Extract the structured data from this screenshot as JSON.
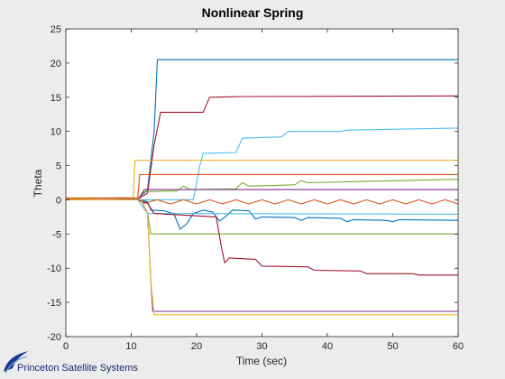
{
  "chart_data": {
    "type": "line",
    "title": "Nonlinear Spring",
    "xlabel": "Time (sec)",
    "ylabel": "Theta",
    "xlim": [
      0,
      60
    ],
    "ylim": [
      -20,
      25
    ],
    "xticks": [
      0,
      10,
      20,
      30,
      40,
      50,
      60
    ],
    "yticks": [
      -20,
      -15,
      -10,
      -5,
      0,
      5,
      10,
      15,
      20,
      25
    ],
    "grid": false,
    "series": [
      {
        "color": "#0072bd",
        "points": [
          [
            0,
            0
          ],
          [
            11,
            0.1
          ],
          [
            12.5,
            1.5
          ],
          [
            13.5,
            10
          ],
          [
            14,
            20.5
          ],
          [
            60,
            20.5
          ]
        ]
      },
      {
        "color": "#a2142f",
        "points": [
          [
            0,
            0
          ],
          [
            11,
            0.1
          ],
          [
            12.5,
            1
          ],
          [
            13.5,
            8
          ],
          [
            14.5,
            12.8
          ],
          [
            21,
            12.8
          ],
          [
            22,
            15
          ],
          [
            27,
            15.1
          ],
          [
            60,
            15.2
          ]
        ]
      },
      {
        "color": "#4dbeee",
        "points": [
          [
            0,
            0
          ],
          [
            19.5,
            0
          ],
          [
            20.5,
            5
          ],
          [
            21,
            6.8
          ],
          [
            26,
            6.9
          ],
          [
            27,
            9
          ],
          [
            33,
            9.2
          ],
          [
            34,
            10
          ],
          [
            42,
            10
          ],
          [
            43,
            10.2
          ],
          [
            60,
            10.5
          ]
        ]
      },
      {
        "color": "#edb120",
        "points": [
          [
            0,
            0.3
          ],
          [
            10.3,
            0.3
          ],
          [
            10.6,
            5.8
          ],
          [
            60,
            5.8
          ]
        ]
      },
      {
        "color": "#d95319",
        "points": [
          [
            0,
            0.2
          ],
          [
            11,
            0.3
          ],
          [
            11.3,
            3.7
          ],
          [
            60,
            3.7
          ]
        ]
      },
      {
        "color": "#77ac30",
        "points": [
          [
            0,
            0
          ],
          [
            11,
            0
          ],
          [
            12,
            1.2
          ],
          [
            17,
            1.3
          ],
          [
            18,
            2
          ],
          [
            19,
            1.5
          ],
          [
            26,
            1.6
          ],
          [
            27,
            2.5
          ],
          [
            28,
            2
          ],
          [
            35,
            2.2
          ],
          [
            36,
            2.8
          ],
          [
            37,
            2.5
          ],
          [
            60,
            3
          ]
        ]
      },
      {
        "color": "#7e2f8e",
        "points": [
          [
            0,
            0
          ],
          [
            11,
            0
          ],
          [
            12,
            1.5
          ],
          [
            60,
            1.5
          ]
        ]
      },
      {
        "color": "#0072bd",
        "points": [
          [
            0,
            0
          ],
          [
            11.5,
            0
          ],
          [
            12.5,
            -0.3
          ],
          [
            13,
            -1.5
          ],
          [
            15,
            -1.6
          ],
          [
            16.5,
            -2
          ],
          [
            17.5,
            -4.3
          ],
          [
            18.5,
            -3.5
          ],
          [
            19.5,
            -2
          ],
          [
            21,
            -1.5
          ],
          [
            22.5,
            -1.8
          ],
          [
            23.5,
            -3.1
          ],
          [
            24.5,
            -2.4
          ],
          [
            25.5,
            -1.5
          ],
          [
            28,
            -1.6
          ],
          [
            29,
            -2.8
          ],
          [
            30,
            -2.5
          ],
          [
            35,
            -2.6
          ],
          [
            36,
            -3
          ],
          [
            37,
            -2.6
          ],
          [
            42,
            -2.7
          ],
          [
            43,
            -3.2
          ],
          [
            44,
            -2.9
          ],
          [
            49,
            -3
          ],
          [
            50,
            -3.2
          ],
          [
            51,
            -2.9
          ],
          [
            60,
            -3
          ]
        ]
      },
      {
        "color": "#4dbeee",
        "points": [
          [
            0,
            0
          ],
          [
            11,
            0
          ],
          [
            12.5,
            -2
          ],
          [
            60,
            -2.1
          ]
        ]
      },
      {
        "color": "#d95319",
        "points": [
          [
            0,
            0
          ],
          [
            11,
            0
          ],
          [
            12,
            -0.5
          ],
          [
            14,
            0
          ],
          [
            16,
            -0.6
          ],
          [
            18,
            0
          ],
          [
            20,
            -0.6
          ],
          [
            22,
            0
          ],
          [
            24,
            -0.6
          ],
          [
            26,
            0
          ],
          [
            28,
            -0.6
          ],
          [
            30,
            0
          ],
          [
            32,
            -0.6
          ],
          [
            34,
            0
          ],
          [
            36,
            -0.6
          ],
          [
            38,
            0
          ],
          [
            40,
            -0.6
          ],
          [
            42,
            0
          ],
          [
            44,
            -0.6
          ],
          [
            46,
            0
          ],
          [
            48,
            -0.6
          ],
          [
            50,
            0
          ],
          [
            52,
            -0.6
          ],
          [
            54,
            0
          ],
          [
            56,
            -0.6
          ],
          [
            58,
            0
          ],
          [
            60,
            -0.6
          ]
        ]
      },
      {
        "color": "#77ac30",
        "points": [
          [
            0,
            0
          ],
          [
            11.5,
            0
          ],
          [
            12.5,
            -2
          ],
          [
            13,
            -5
          ],
          [
            60,
            -5
          ]
        ]
      },
      {
        "color": "#a2142f",
        "points": [
          [
            0,
            0
          ],
          [
            11,
            0
          ],
          [
            12.5,
            -0.5
          ],
          [
            13.5,
            -2
          ],
          [
            23,
            -2.5
          ],
          [
            23.8,
            -7
          ],
          [
            24.3,
            -9.2
          ],
          [
            25,
            -8.5
          ],
          [
            29,
            -8.7
          ],
          [
            30,
            -9.7
          ],
          [
            37,
            -9.8
          ],
          [
            38,
            -10.3
          ],
          [
            45,
            -10.4
          ],
          [
            46,
            -10.8
          ],
          [
            53,
            -10.8
          ],
          [
            54,
            -11
          ],
          [
            60,
            -11
          ]
        ]
      },
      {
        "color": "#7e2f8e",
        "points": [
          [
            0,
            0
          ],
          [
            11.5,
            0
          ],
          [
            12.5,
            -2
          ],
          [
            13,
            -12
          ],
          [
            13.3,
            -16.3
          ],
          [
            60,
            -16.3
          ]
        ]
      },
      {
        "color": "#edb120",
        "points": [
          [
            0,
            0
          ],
          [
            11.5,
            0
          ],
          [
            12.5,
            -2
          ],
          [
            13,
            -12
          ],
          [
            13.5,
            -16.8
          ],
          [
            60,
            -16.8
          ]
        ]
      }
    ]
  },
  "logo": {
    "text": "Princeton Satellite Systems"
  }
}
